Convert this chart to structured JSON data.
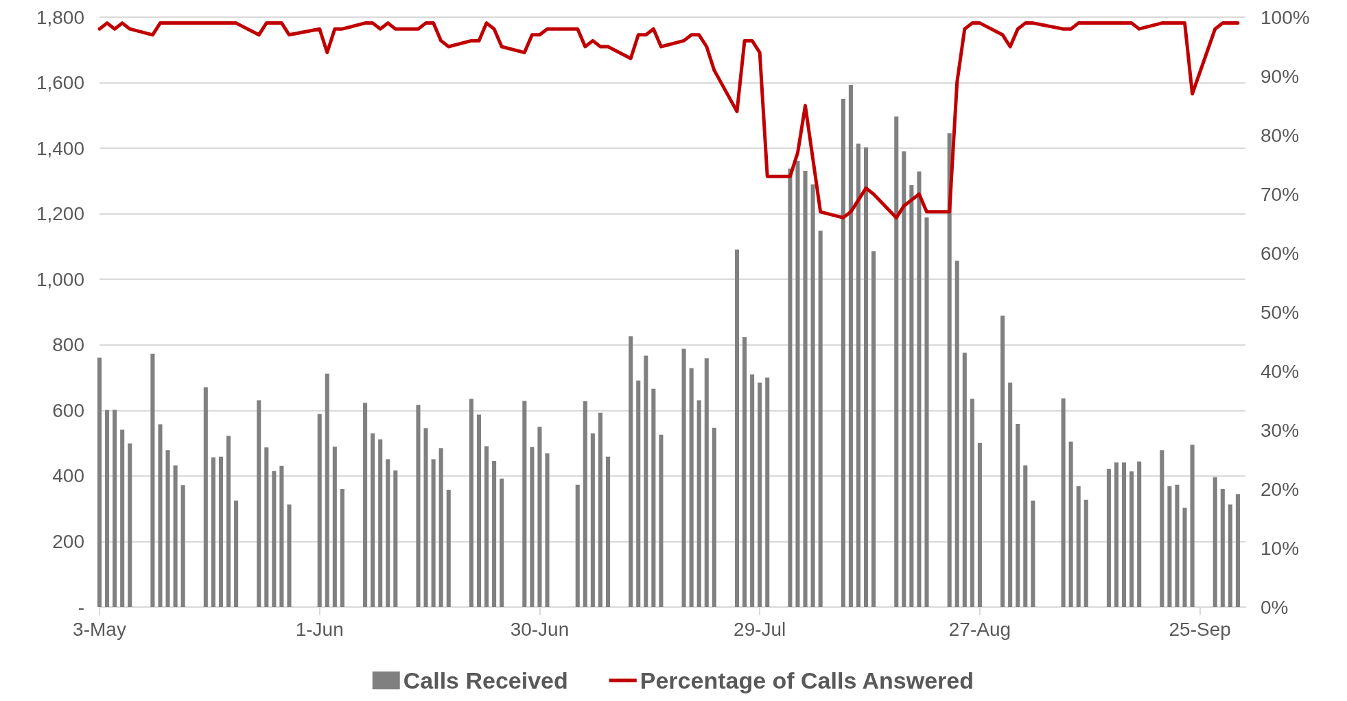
{
  "chart_data": {
    "type": "bar",
    "x": [
      "--05-03",
      "--05-04",
      "--05-05",
      "--05-06",
      "--05-07",
      "--05-10",
      "--05-11",
      "--05-12",
      "--05-13",
      "--05-14",
      "--05-17",
      "--05-18",
      "--05-19",
      "--05-20",
      "--05-21",
      "--05-24",
      "--05-25",
      "--05-26",
      "--05-27",
      "--05-28",
      "--06-01",
      "--06-02",
      "--06-03",
      "--06-04",
      "--06-07",
      "--06-08",
      "--06-09",
      "--06-10",
      "--06-11",
      "--06-14",
      "--06-15",
      "--06-16",
      "--06-17",
      "--06-18",
      "--06-21",
      "--06-22",
      "--06-23",
      "--06-24",
      "--06-25",
      "--06-28",
      "--06-29",
      "--06-30",
      "--07-01",
      "--07-05",
      "--07-06",
      "--07-07",
      "--07-08",
      "--07-09",
      "--07-12",
      "--07-13",
      "--07-14",
      "--07-15",
      "--07-16",
      "--07-19",
      "--07-20",
      "--07-21",
      "--07-22",
      "--07-23",
      "--07-26",
      "--07-27",
      "--07-28",
      "--07-29",
      "--07-30",
      "--08-02",
      "--08-03",
      "--08-04",
      "--08-05",
      "--08-06",
      "--08-09",
      "--08-10",
      "--08-11",
      "--08-12",
      "--08-13",
      "--08-16",
      "--08-17",
      "--08-18",
      "--08-19",
      "--08-20",
      "--08-23",
      "--08-24",
      "--08-25",
      "--08-26",
      "--08-27",
      "--08-30",
      "--08-31",
      "--09-01",
      "--09-02",
      "--09-03",
      "--09-07",
      "--09-08",
      "--09-09",
      "--09-10",
      "--09-13",
      "--09-14",
      "--09-15",
      "--09-16",
      "--09-17",
      "--09-20",
      "--09-21",
      "--09-22",
      "--09-23",
      "--09-24",
      "--09-27",
      "--09-28",
      "--09-29",
      "--09-30"
    ],
    "series": [
      {
        "name": "Calls Received",
        "color": "#808080",
        "values": [
          761,
          601,
          602,
          541,
          499,
          773,
          558,
          479,
          432,
          372,
          671,
          457,
          459,
          522,
          325,
          631,
          487,
          415,
          431,
          313,
          589,
          712,
          489,
          360,
          623,
          530,
          512,
          451,
          417,
          617,
          546,
          451,
          485,
          358,
          635,
          587,
          491,
          446,
          392,
          629,
          488,
          550,
          469,
          373,
          628,
          530,
          593,
          459,
          826,
          691,
          767,
          666,
          526,
          788,
          729,
          631,
          759,
          547,
          1091,
          824,
          710,
          685,
          700,
          1338,
          1361,
          1331,
          1290,
          1148,
          1551,
          1593,
          1414,
          1403,
          1086,
          1497,
          1391,
          1287,
          1329,
          1189,
          1446,
          1057,
          776,
          635,
          501,
          889,
          685,
          559,
          432,
          325,
          637,
          505,
          369,
          327,
          421,
          441,
          441,
          414,
          444,
          479,
          369,
          373,
          303,
          495,
          396,
          360,
          313,
          345
        ]
      },
      {
        "name": "Percentage of Calls Answered",
        "type": "line",
        "axis": "y2",
        "color": "#c00000",
        "marker": "none",
        "line_style": "solid",
        "values": [
          98,
          99,
          98,
          99,
          98,
          97,
          99,
          99,
          99,
          99,
          99,
          99,
          99,
          99,
          99,
          97,
          99,
          99,
          99,
          97,
          98,
          94,
          98,
          98,
          99,
          99,
          98,
          99,
          98,
          98,
          99,
          99,
          96,
          95,
          96,
          96,
          99,
          98,
          95,
          94,
          97,
          97,
          98,
          98,
          95,
          96,
          95,
          95,
          93,
          97,
          97,
          98,
          95,
          96,
          97,
          97,
          95,
          91,
          84,
          96,
          96,
          94,
          73,
          73,
          77,
          85,
          76,
          67,
          66,
          67,
          69,
          71,
          70,
          66,
          68,
          69,
          70,
          67,
          67,
          89,
          98,
          99,
          99,
          97,
          95,
          98,
          99,
          99,
          98,
          98,
          99,
          99,
          99,
          99,
          99,
          99,
          98,
          99,
          99,
          99,
          99,
          87,
          98,
          99,
          99,
          99
        ]
      }
    ],
    "xlim": [
      "--05-03",
      "--10-01"
    ],
    "xticks": [
      {
        "value": "--05-03",
        "label": "3-May"
      },
      {
        "value": "--06-01",
        "label": "1-Jun"
      },
      {
        "value": "--06-30",
        "label": "30-Jun"
      },
      {
        "value": "--07-29",
        "label": "29-Jul"
      },
      {
        "value": "--08-27",
        "label": "27-Aug"
      },
      {
        "value": "--09-25",
        "label": "25-Sep"
      }
    ],
    "ylim": [
      0,
      1800
    ],
    "yticks": [
      {
        "value": 0,
        "label": "-"
      },
      {
        "value": 200,
        "label": "200"
      },
      {
        "value": 400,
        "label": "400"
      },
      {
        "value": 600,
        "label": "600"
      },
      {
        "value": 800,
        "label": "800"
      },
      {
        "value": 1000,
        "label": "1,000"
      },
      {
        "value": 1200,
        "label": "1,200"
      },
      {
        "value": 1400,
        "label": "1,400"
      },
      {
        "value": 1600,
        "label": "1,600"
      },
      {
        "value": 1800,
        "label": "1,800"
      }
    ],
    "y2lim": [
      0,
      100
    ],
    "y2ticks": [
      {
        "value": 0,
        "label": "0%"
      },
      {
        "value": 10,
        "label": "10%"
      },
      {
        "value": 20,
        "label": "20%"
      },
      {
        "value": 30,
        "label": "30%"
      },
      {
        "value": 40,
        "label": "40%"
      },
      {
        "value": 50,
        "label": "50%"
      },
      {
        "value": 60,
        "label": "60%"
      },
      {
        "value": 70,
        "label": "70%"
      },
      {
        "value": 80,
        "label": "80%"
      },
      {
        "value": 90,
        "label": "90%"
      },
      {
        "value": 100,
        "label": "100%"
      }
    ],
    "grid": "y",
    "legend": "bottom"
  }
}
